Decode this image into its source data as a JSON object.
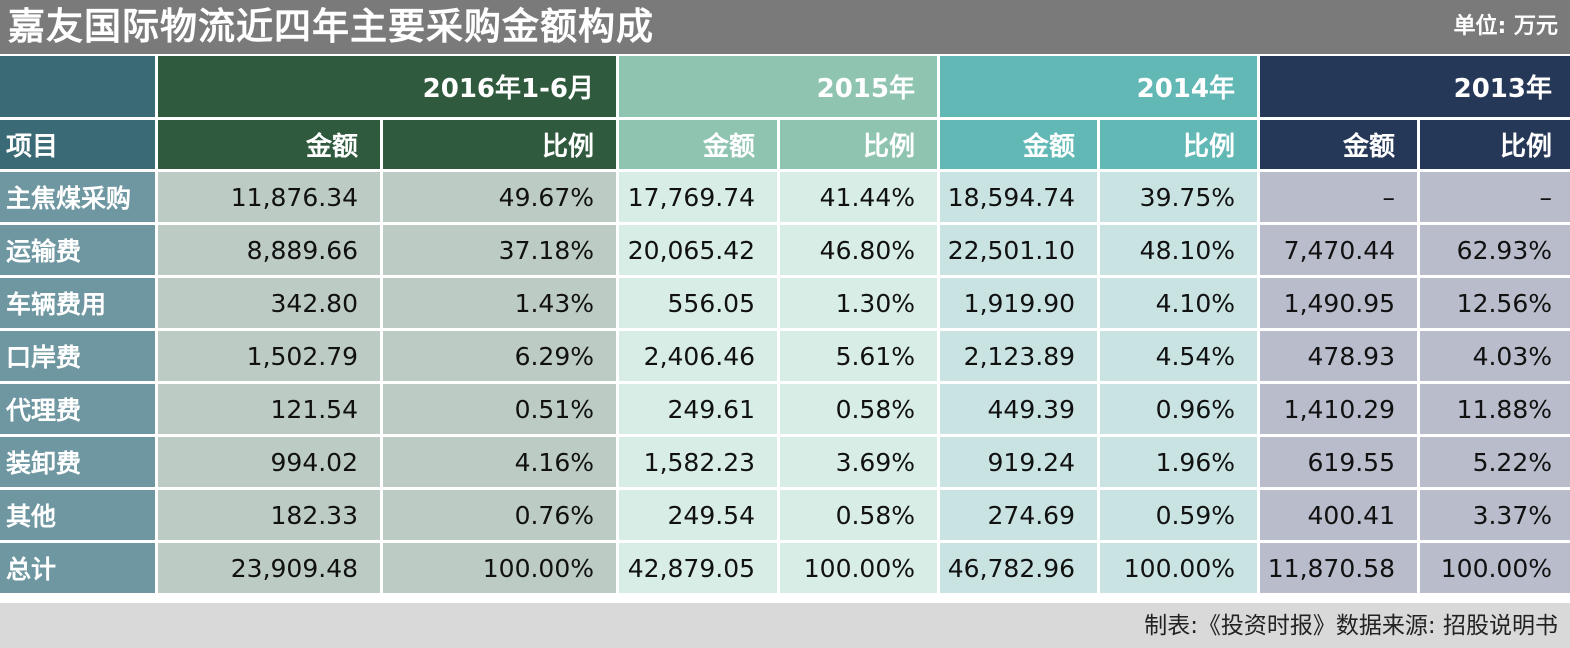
{
  "title": "嘉友国际物流近四年主要采购金额构成",
  "unit": "单位: 万元",
  "source": "制表:《投资时报》数据来源: 招股说明书",
  "chart_data": {
    "type": "table",
    "columns": [
      "2016年1-6月",
      "2015年",
      "2014年",
      "2013年"
    ],
    "sub_headers": {
      "label": "项目",
      "amount": "金额",
      "ratio": "比例"
    },
    "rows": [
      {
        "item": "主焦煤采购",
        "values": [
          "11,876.34",
          "49.67%",
          "17,769.74",
          "41.44%",
          "18,594.74",
          "39.75%",
          "–",
          "–"
        ]
      },
      {
        "item": "运输费",
        "values": [
          "8,889.66",
          "37.18%",
          "20,065.42",
          "46.80%",
          "22,501.10",
          "48.10%",
          "7,470.44",
          "62.93%"
        ]
      },
      {
        "item": "车辆费用",
        "values": [
          "342.80",
          "1.43%",
          "556.05",
          "1.30%",
          "1,919.90",
          "4.10%",
          "1,490.95",
          "12.56%"
        ]
      },
      {
        "item": "口岸费",
        "values": [
          "1,502.79",
          "6.29%",
          "2,406.46",
          "5.61%",
          "2,123.89",
          "4.54%",
          "478.93",
          "4.03%"
        ]
      },
      {
        "item": "代理费",
        "values": [
          "121.54",
          "0.51%",
          "249.61",
          "0.58%",
          "449.39",
          "0.96%",
          "1,410.29",
          "11.88%"
        ]
      },
      {
        "item": "装卸费",
        "values": [
          "994.02",
          "4.16%",
          "1,582.23",
          "3.69%",
          "919.24",
          "1.96%",
          "619.55",
          "5.22%"
        ]
      },
      {
        "item": "其他",
        "values": [
          "182.33",
          "0.76%",
          "249.54",
          "0.58%",
          "274.69",
          "0.59%",
          "400.41",
          "3.37%"
        ]
      },
      {
        "item": "总计",
        "values": [
          "23,909.48",
          "100.00%",
          "42,879.05",
          "100.00%",
          "46,782.96",
          "100.00%",
          "11,870.58",
          "100.00%"
        ]
      }
    ],
    "colors": {
      "2016": "#2f5a3e",
      "2015": "#8ec4b0",
      "2014": "#62b8b4",
      "2013": "#263858"
    }
  }
}
